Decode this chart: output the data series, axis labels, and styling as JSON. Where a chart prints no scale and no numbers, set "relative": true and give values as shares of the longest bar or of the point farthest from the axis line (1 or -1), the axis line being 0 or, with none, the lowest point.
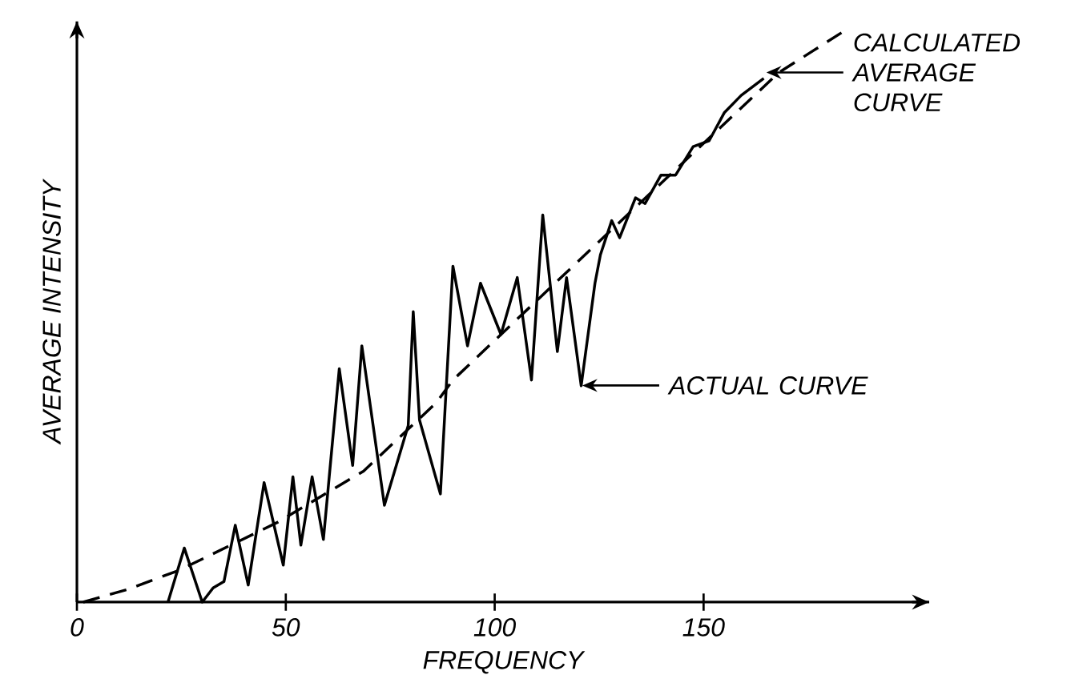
{
  "chart_data": {
    "type": "line",
    "xlabel": "FREQUENCY",
    "ylabel": "AVERAGE INTENSITY",
    "relative": true,
    "xlim": [
      0,
      204
    ],
    "xticks": [
      0,
      50,
      100,
      150
    ],
    "grid": false,
    "marker": "none",
    "series": [
      {
        "color": "#000000",
        "line_style": "solid",
        "x": [
          21.8,
          25.7,
          30,
          32.6,
          35.2,
          37.9,
          41,
          44.8,
          49.4,
          51.7,
          53.6,
          56.3,
          59,
          62.8,
          66,
          68.2,
          73.6,
          79.3,
          80.5,
          82,
          87,
          90,
          93.5,
          96.6,
          101.5,
          105.4,
          108.8,
          111.5,
          115,
          117.2,
          120.7,
          124,
          125.3,
          128,
          129.9,
          133.7,
          136,
          139.8,
          143.3,
          147.5,
          151.3,
          155,
          159,
          164.4
        ],
        "values": [
          0,
          0.095,
          0,
          0.025,
          0.036,
          0.135,
          0.03,
          0.21,
          0.065,
          0.22,
          0.1,
          0.22,
          0.11,
          0.41,
          0.24,
          0.45,
          0.17,
          0.31,
          0.51,
          0.32,
          0.19,
          0.59,
          0.45,
          0.56,
          0.47,
          0.57,
          0.39,
          0.68,
          0.44,
          0.57,
          0.38,
          0.56,
          0.61,
          0.67,
          0.64,
          0.71,
          0.7,
          0.75,
          0.75,
          0.8,
          0.81,
          0.86,
          0.89,
          0.92
        ]
      },
      {
        "color": "#000000",
        "line_style": "dashed",
        "x": [
          1.5,
          12,
          24.5,
          48,
          68.6,
          86,
          90,
          124.5,
          168,
          183
        ],
        "values": [
          0,
          0.022,
          0.056,
          0.14,
          0.23,
          0.35,
          0.39,
          0.63,
          0.93,
          1.0
        ]
      }
    ],
    "annotations": [
      "CALCULATED AVERAGE CURVE",
      "ACTUAL CURVE"
    ]
  }
}
